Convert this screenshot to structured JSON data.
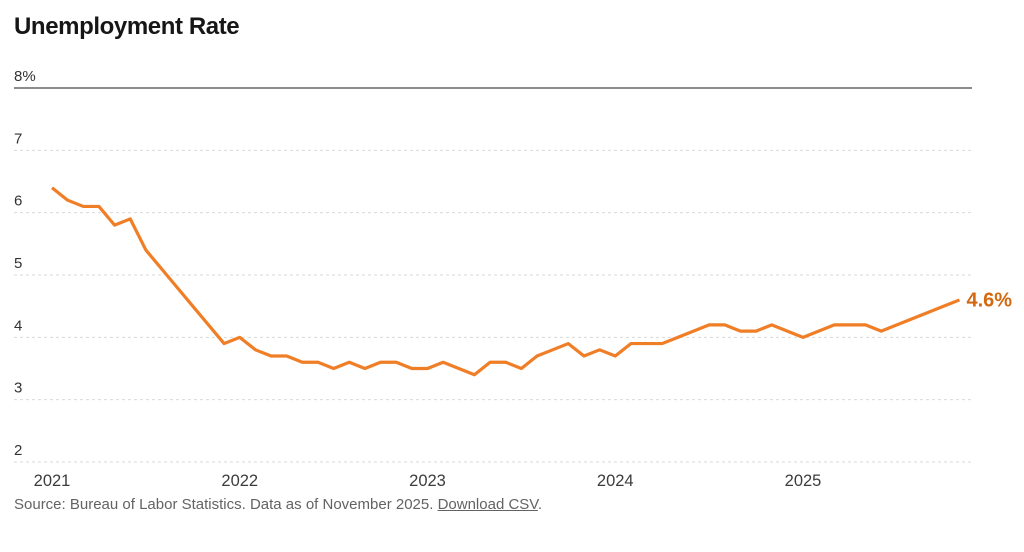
{
  "title": "Unemployment Rate",
  "source": {
    "text": "Source: Bureau of Labor Statistics. Data as of November 2025.",
    "link_label": "Download CSV",
    "suffix": "."
  },
  "chart_data": {
    "type": "line",
    "title": "Unemployment Rate",
    "unit": "percent",
    "frequency": "monthly",
    "start": "2021-01",
    "end": "2025-11",
    "grid": "horizontal-dashed",
    "ylim": [
      2,
      8
    ],
    "x_tick_labels": [
      "2021",
      "2022",
      "2023",
      "2024",
      "2025"
    ],
    "y_ticks": [
      {
        "label": "8%",
        "value": 8
      },
      {
        "label": "7",
        "value": 7
      },
      {
        "label": "6",
        "value": 6
      },
      {
        "label": "5",
        "value": 5
      },
      {
        "label": "4",
        "value": 4
      },
      {
        "label": "3",
        "value": 3
      },
      {
        "label": "2",
        "value": 2
      }
    ],
    "line_color": "#f07e26",
    "end_label": {
      "text": "4.6%",
      "color": "#d4690f"
    },
    "series": [
      {
        "name": "Unemployment rate",
        "values": [
          6.4,
          6.2,
          6.1,
          6.1,
          5.8,
          5.9,
          5.4,
          5.1,
          4.8,
          4.5,
          4.2,
          3.9,
          4.0,
          3.8,
          3.7,
          3.7,
          3.6,
          3.6,
          3.5,
          3.6,
          3.5,
          3.6,
          3.6,
          3.5,
          3.5,
          3.6,
          3.5,
          3.4,
          3.6,
          3.6,
          3.5,
          3.7,
          3.8,
          3.9,
          3.7,
          3.8,
          3.7,
          3.9,
          3.9,
          3.9,
          4.0,
          4.1,
          4.2,
          4.2,
          4.1,
          4.1,
          4.2,
          4.1,
          4.0,
          4.1,
          4.2,
          4.2,
          4.2,
          4.1,
          4.2,
          4.3,
          4.4,
          4.5,
          4.6
        ]
      }
    ]
  }
}
